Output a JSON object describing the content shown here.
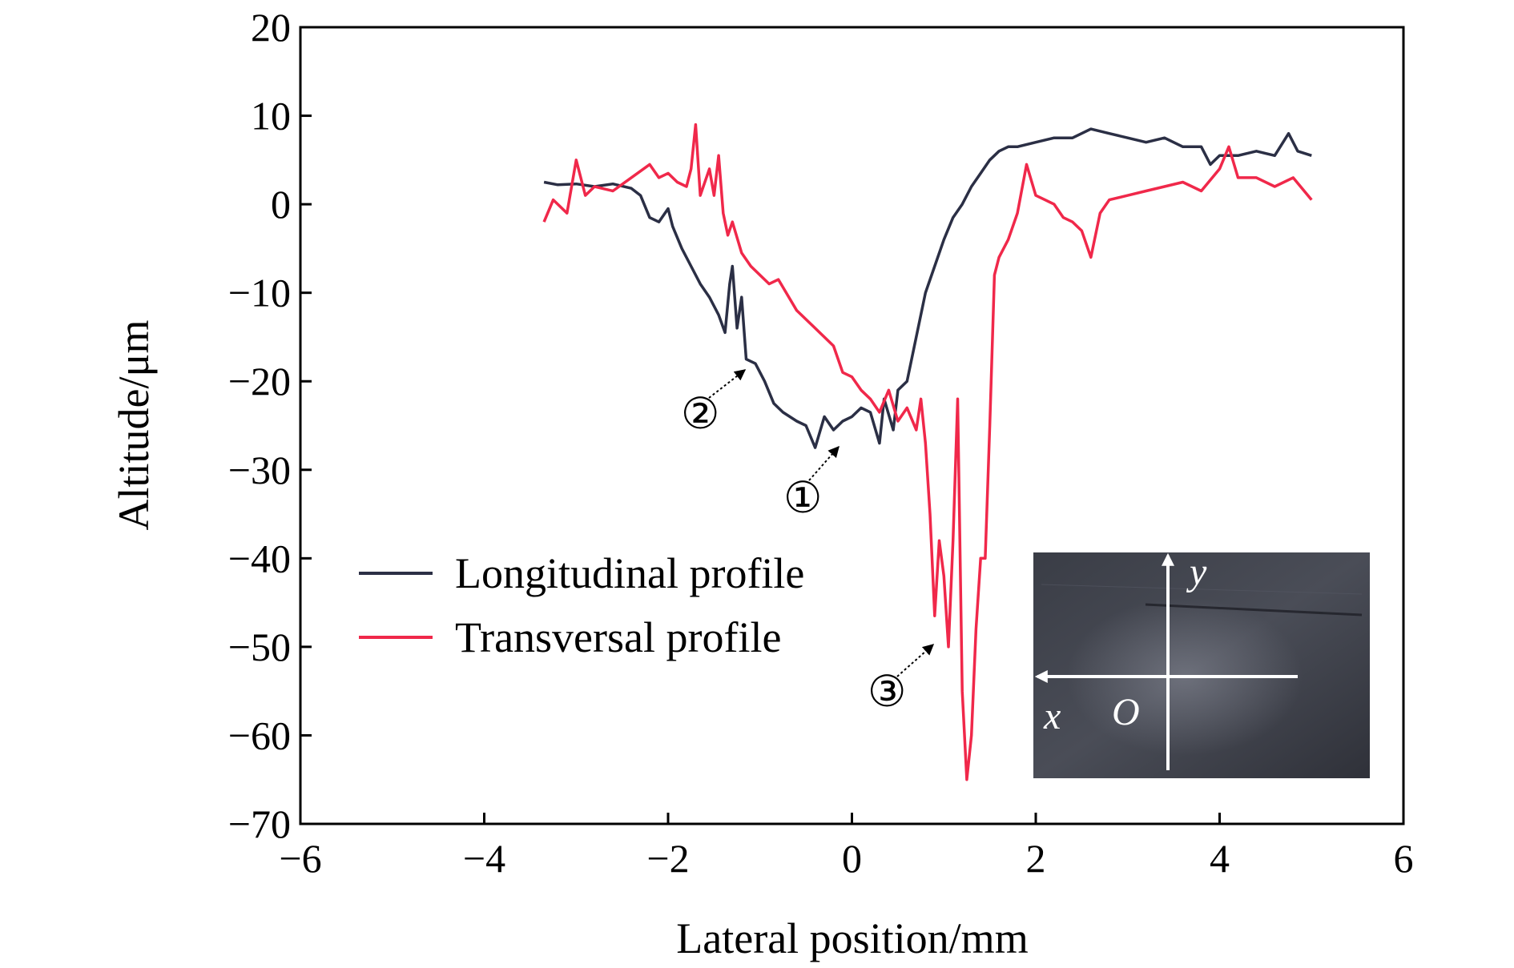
{
  "chart_data": {
    "type": "line",
    "title": "",
    "xlabel": "Lateral position/mm",
    "ylabel": "Altitude/μm",
    "xlim": [
      -6,
      6
    ],
    "ylim": [
      -70,
      20
    ],
    "x_ticks": [
      -6,
      -4,
      -2,
      0,
      2,
      4,
      6
    ],
    "y_ticks": [
      -70,
      -60,
      -50,
      -40,
      -30,
      -20,
      -10,
      0,
      10,
      20
    ],
    "x_tick_labels": [
      "−6",
      "−4",
      "−2",
      "0",
      "2",
      "4",
      "6"
    ],
    "y_tick_labels": [
      "−70",
      "−60",
      "−50",
      "−40",
      "−30",
      "−20",
      "−10",
      "0",
      "10",
      "20"
    ],
    "grid": false,
    "legend_position": "lower-left",
    "series": [
      {
        "name": "Longitudinal profile",
        "color": "#2b2f45",
        "points": [
          [
            -3.35,
            2.5
          ],
          [
            -3.2,
            2.2
          ],
          [
            -3.0,
            2.3
          ],
          [
            -2.8,
            2.0
          ],
          [
            -2.6,
            2.3
          ],
          [
            -2.4,
            1.8
          ],
          [
            -2.3,
            1.0
          ],
          [
            -2.2,
            -1.5
          ],
          [
            -2.1,
            -2.0
          ],
          [
            -2.0,
            -0.5
          ],
          [
            -1.95,
            -2.5
          ],
          [
            -1.85,
            -5.0
          ],
          [
            -1.75,
            -7.0
          ],
          [
            -1.65,
            -9.0
          ],
          [
            -1.55,
            -10.5
          ],
          [
            -1.45,
            -12.5
          ],
          [
            -1.38,
            -14.5
          ],
          [
            -1.33,
            -9.0
          ],
          [
            -1.3,
            -7.0
          ],
          [
            -1.25,
            -14.0
          ],
          [
            -1.2,
            -10.5
          ],
          [
            -1.15,
            -17.5
          ],
          [
            -1.05,
            -18.0
          ],
          [
            -0.95,
            -20.0
          ],
          [
            -0.85,
            -22.5
          ],
          [
            -0.75,
            -23.5
          ],
          [
            -0.6,
            -24.5
          ],
          [
            -0.5,
            -25.0
          ],
          [
            -0.4,
            -27.5
          ],
          [
            -0.3,
            -24.0
          ],
          [
            -0.2,
            -25.5
          ],
          [
            -0.1,
            -24.5
          ],
          [
            0.0,
            -24.0
          ],
          [
            0.1,
            -23.0
          ],
          [
            0.2,
            -23.5
          ],
          [
            0.3,
            -27.0
          ],
          [
            0.35,
            -22.0
          ],
          [
            0.45,
            -25.5
          ],
          [
            0.5,
            -21.0
          ],
          [
            0.6,
            -20.0
          ],
          [
            0.7,
            -15.0
          ],
          [
            0.8,
            -10.0
          ],
          [
            0.9,
            -7.0
          ],
          [
            1.0,
            -4.0
          ],
          [
            1.1,
            -1.5
          ],
          [
            1.2,
            0.0
          ],
          [
            1.3,
            2.0
          ],
          [
            1.4,
            3.5
          ],
          [
            1.5,
            5.0
          ],
          [
            1.6,
            6.0
          ],
          [
            1.7,
            6.5
          ],
          [
            1.8,
            6.5
          ],
          [
            2.0,
            7.0
          ],
          [
            2.2,
            7.5
          ],
          [
            2.4,
            7.5
          ],
          [
            2.6,
            8.5
          ],
          [
            2.8,
            8.0
          ],
          [
            3.0,
            7.5
          ],
          [
            3.2,
            7.0
          ],
          [
            3.4,
            7.5
          ],
          [
            3.6,
            6.5
          ],
          [
            3.8,
            6.5
          ],
          [
            3.9,
            4.5
          ],
          [
            4.0,
            5.5
          ],
          [
            4.2,
            5.5
          ],
          [
            4.4,
            6.0
          ],
          [
            4.6,
            5.5
          ],
          [
            4.75,
            8.0
          ],
          [
            4.85,
            6.0
          ],
          [
            5.0,
            5.5
          ]
        ]
      },
      {
        "name": "Transversal profile",
        "color": "#f0284a",
        "points": [
          [
            -3.35,
            -2.0
          ],
          [
            -3.25,
            0.5
          ],
          [
            -3.1,
            -1.0
          ],
          [
            -3.0,
            5.0
          ],
          [
            -2.9,
            1.0
          ],
          [
            -2.8,
            2.0
          ],
          [
            -2.6,
            1.5
          ],
          [
            -2.4,
            3.0
          ],
          [
            -2.2,
            4.5
          ],
          [
            -2.1,
            3.0
          ],
          [
            -2.0,
            3.5
          ],
          [
            -1.9,
            2.5
          ],
          [
            -1.8,
            2.0
          ],
          [
            -1.75,
            4.0
          ],
          [
            -1.7,
            9.0
          ],
          [
            -1.65,
            1.0
          ],
          [
            -1.55,
            4.0
          ],
          [
            -1.5,
            1.0
          ],
          [
            -1.45,
            5.5
          ],
          [
            -1.4,
            -1.0
          ],
          [
            -1.35,
            -3.5
          ],
          [
            -1.3,
            -2.0
          ],
          [
            -1.2,
            -5.5
          ],
          [
            -1.1,
            -7.0
          ],
          [
            -1.0,
            -8.0
          ],
          [
            -0.9,
            -9.0
          ],
          [
            -0.8,
            -8.5
          ],
          [
            -0.6,
            -12.0
          ],
          [
            -0.4,
            -14.0
          ],
          [
            -0.2,
            -16.0
          ],
          [
            -0.1,
            -19.0
          ],
          [
            0.0,
            -19.5
          ],
          [
            0.1,
            -21.0
          ],
          [
            0.2,
            -22.0
          ],
          [
            0.3,
            -23.5
          ],
          [
            0.4,
            -21.0
          ],
          [
            0.5,
            -24.5
          ],
          [
            0.6,
            -23.0
          ],
          [
            0.7,
            -25.5
          ],
          [
            0.75,
            -22.0
          ],
          [
            0.8,
            -27.0
          ],
          [
            0.85,
            -35.0
          ],
          [
            0.9,
            -46.5
          ],
          [
            0.95,
            -38.0
          ],
          [
            1.0,
            -42.0
          ],
          [
            1.05,
            -50.0
          ],
          [
            1.1,
            -38.0
          ],
          [
            1.15,
            -22.0
          ],
          [
            1.2,
            -55.0
          ],
          [
            1.25,
            -65.0
          ],
          [
            1.3,
            -60.0
          ],
          [
            1.35,
            -48.0
          ],
          [
            1.4,
            -40.0
          ],
          [
            1.45,
            -40.0
          ],
          [
            1.5,
            -25.0
          ],
          [
            1.55,
            -8.0
          ],
          [
            1.6,
            -6.0
          ],
          [
            1.7,
            -4.0
          ],
          [
            1.8,
            -1.0
          ],
          [
            1.9,
            4.5
          ],
          [
            2.0,
            1.0
          ],
          [
            2.1,
            0.5
          ],
          [
            2.2,
            0.0
          ],
          [
            2.3,
            -1.5
          ],
          [
            2.4,
            -2.0
          ],
          [
            2.5,
            -3.0
          ],
          [
            2.6,
            -6.0
          ],
          [
            2.7,
            -1.0
          ],
          [
            2.8,
            0.5
          ],
          [
            3.0,
            1.0
          ],
          [
            3.2,
            1.5
          ],
          [
            3.4,
            2.0
          ],
          [
            3.6,
            2.5
          ],
          [
            3.8,
            1.5
          ],
          [
            4.0,
            4.0
          ],
          [
            4.1,
            6.5
          ],
          [
            4.2,
            3.0
          ],
          [
            4.4,
            3.0
          ],
          [
            4.6,
            2.0
          ],
          [
            4.8,
            3.0
          ],
          [
            5.0,
            0.5
          ]
        ]
      }
    ],
    "annotations": [
      {
        "label": "①",
        "arrow_to": [
          -0.1,
          -27.5
        ]
      },
      {
        "label": "②",
        "arrow_to": [
          -1.15,
          -18.5
        ]
      },
      {
        "label": "③",
        "arrow_to": [
          0.9,
          -49.5
        ]
      }
    ],
    "inset": {
      "description_labels": {
        "x": "x",
        "y": "y",
        "origin": "O"
      }
    }
  }
}
